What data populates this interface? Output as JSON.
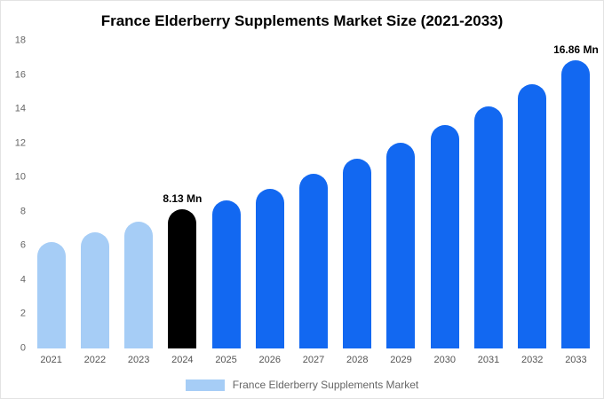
{
  "title": "France Elderberry Supplements Market Size (2021-2033)",
  "legend": {
    "label": "France Elderberry Supplements Market"
  },
  "colors": {
    "light_blue": "#a6cdf6",
    "primary_blue": "#1268f1",
    "highlight_black": "#000000",
    "axis_text": "#666666"
  },
  "chart_data": {
    "type": "bar",
    "title": "France Elderberry Supplements Market Size (2021-2033)",
    "categories": [
      "2021",
      "2022",
      "2023",
      "2024",
      "2025",
      "2026",
      "2027",
      "2028",
      "2029",
      "2030",
      "2031",
      "2032",
      "2033"
    ],
    "values": [
      6.2,
      6.8,
      7.4,
      8.13,
      8.65,
      9.35,
      10.2,
      11.1,
      12.05,
      13.05,
      14.15,
      15.45,
      16.86
    ],
    "bar_colors": [
      "#a6cdf6",
      "#a6cdf6",
      "#a6cdf6",
      "#000000",
      "#1268f1",
      "#1268f1",
      "#1268f1",
      "#1268f1",
      "#1268f1",
      "#1268f1",
      "#1268f1",
      "#1268f1",
      "#1268f1"
    ],
    "labels": [
      "",
      "",
      "",
      "8.13 Mn",
      "",
      "",
      "",
      "",
      "",
      "",
      "",
      "",
      "16.86 Mn"
    ],
    "xlabel": "",
    "ylabel": "",
    "ylim": [
      0,
      18
    ],
    "ytick_step": 2,
    "grid": false,
    "legend_position": "bottom",
    "legend_entries": [
      "France Elderberry Supplements Market"
    ],
    "unit": "Mn"
  }
}
